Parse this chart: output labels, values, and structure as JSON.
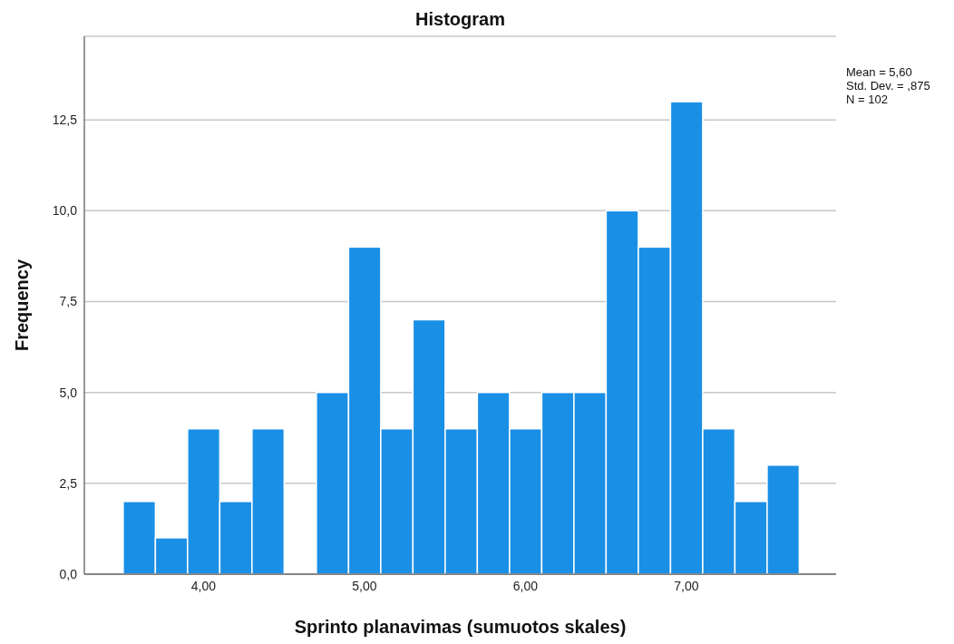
{
  "chart_data": {
    "type": "histogram",
    "title": "Histogram",
    "xlabel": "Sprinto planavimas (sumuotos skales)",
    "ylabel": "Frequency",
    "bins": [
      3.5,
      3.7,
      3.9,
      4.1,
      4.3,
      4.5,
      4.7,
      4.9,
      5.1,
      5.3,
      5.5,
      5.7,
      5.9,
      6.1,
      6.3,
      6.5,
      6.7,
      6.9,
      7.1,
      7.3,
      7.5,
      7.7
    ],
    "values": [
      2,
      1,
      4,
      2,
      4,
      0,
      5,
      9,
      4,
      7,
      4,
      5,
      4,
      5,
      5,
      10,
      9,
      13,
      4,
      2,
      3
    ],
    "color": "#1a8fe6",
    "xlim": [
      3.26,
      7.93
    ],
    "xticks": [
      {
        "value": 4,
        "label": "4,00"
      },
      {
        "value": 5,
        "label": "5,00"
      },
      {
        "value": 6,
        "label": "6,00"
      },
      {
        "value": 7,
        "label": "7,00"
      }
    ],
    "ylim": [
      0,
      14.8
    ],
    "yticks": [
      {
        "value": 0,
        "label": "0,0"
      },
      {
        "value": 2.5,
        "label": "2,5"
      },
      {
        "value": 5,
        "label": "5,0"
      },
      {
        "value": 7.5,
        "label": "7,5"
      },
      {
        "value": 10,
        "label": "10,0"
      },
      {
        "value": 12.5,
        "label": "12,5"
      }
    ],
    "grid": "y",
    "annotations": [
      "Mean = 5,60",
      "Std. Dev. = ,875",
      "N = 102"
    ]
  }
}
